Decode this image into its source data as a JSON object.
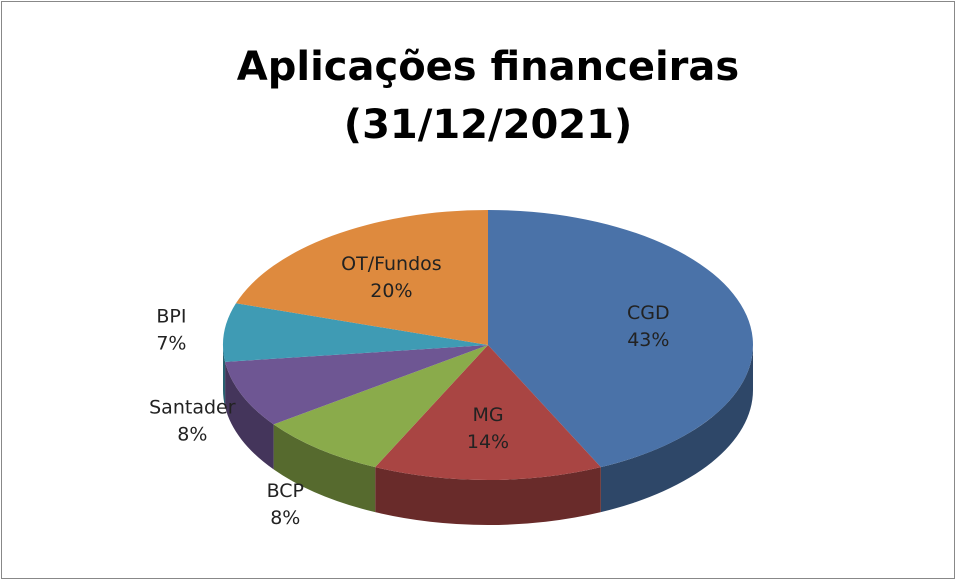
{
  "chart_data": {
    "type": "pie",
    "title": "Aplicações financeiras (31/12/2021)",
    "categories": [
      "CGD",
      "MG",
      "BCP",
      "Santader",
      "BPI",
      "OT/Fundos"
    ],
    "values": [
      43,
      14,
      8,
      8,
      7,
      20
    ],
    "value_labels": [
      "43%",
      "14%",
      "8%",
      "8%",
      "7%",
      "20%"
    ],
    "colors": [
      "#4a72a8",
      "#a94543",
      "#8aab4b",
      "#6e5693",
      "#3f9bb4",
      "#de8a3e"
    ]
  }
}
